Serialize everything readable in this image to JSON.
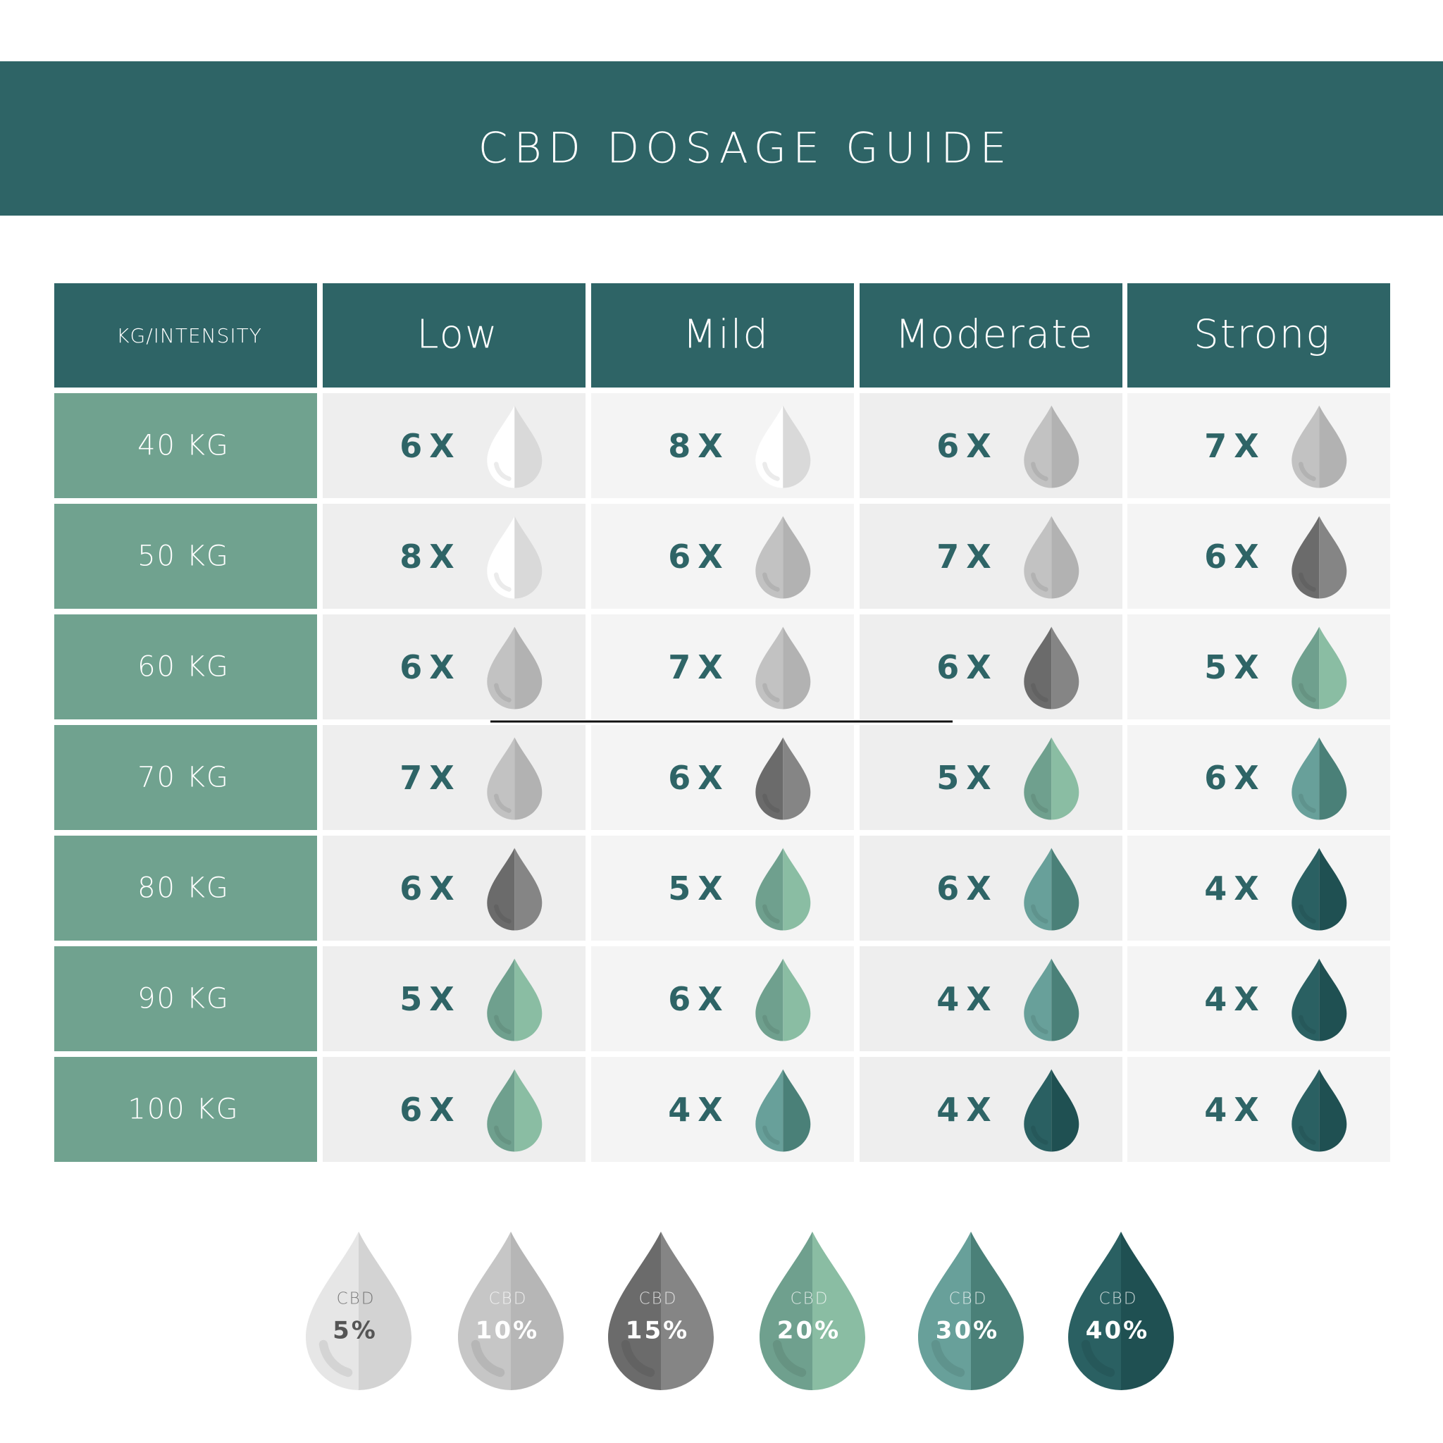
{
  "header": {
    "title": "CBD DOSAGE GUIDE"
  },
  "table": {
    "header": [
      "KG/INTENSITY",
      "Low",
      "Mild",
      "Moderate",
      "Strong"
    ],
    "rows": [
      {
        "label": "40 KG",
        "cells": [
          {
            "text": "6X",
            "colors": [
              "#ffffff",
              "#d9d9d9"
            ]
          },
          {
            "text": "8X",
            "colors": [
              "#ffffff",
              "#d9d9d9"
            ]
          },
          {
            "text": "6X",
            "colors": [
              "#c2c2c2",
              "#b2b2b2"
            ]
          },
          {
            "text": "7X",
            "colors": [
              "#c2c2c2",
              "#b2b2b2"
            ]
          }
        ]
      },
      {
        "label": "50 KG",
        "cells": [
          {
            "text": "8X",
            "colors": [
              "#ffffff",
              "#d9d9d9"
            ]
          },
          {
            "text": "6X",
            "colors": [
              "#c2c2c2",
              "#b2b2b2"
            ]
          },
          {
            "text": "7X",
            "colors": [
              "#c2c2c2",
              "#b2b2b2"
            ]
          },
          {
            "text": "6X",
            "colors": [
              "#6b6b6b",
              "#858585"
            ]
          }
        ]
      },
      {
        "label": "60 KG",
        "cells": [
          {
            "text": "6X",
            "colors": [
              "#c2c2c2",
              "#b2b2b2"
            ]
          },
          {
            "text": "7X",
            "colors": [
              "#c2c2c2",
              "#b2b2b2"
            ]
          },
          {
            "text": "6X",
            "colors": [
              "#6b6b6b",
              "#858585"
            ]
          },
          {
            "text": "5X",
            "colors": [
              "#6fa08e",
              "#8abda3"
            ]
          }
        ]
      },
      {
        "label": "70 KG",
        "cells": [
          {
            "text": "7X",
            "colors": [
              "#c2c2c2",
              "#b2b2b2"
            ]
          },
          {
            "text": "6X",
            "colors": [
              "#6b6b6b",
              "#858585"
            ]
          },
          {
            "text": "5X",
            "colors": [
              "#6fa08e",
              "#8abda3"
            ]
          },
          {
            "text": "6X",
            "colors": [
              "#68a09a",
              "#4a8078"
            ]
          }
        ]
      },
      {
        "label": "80 KG",
        "cells": [
          {
            "text": "6X",
            "colors": [
              "#6b6b6b",
              "#858585"
            ]
          },
          {
            "text": "5X",
            "colors": [
              "#6fa08e",
              "#8abda3"
            ]
          },
          {
            "text": "6X",
            "colors": [
              "#68a09a",
              "#4a8078"
            ]
          },
          {
            "text": "4X",
            "colors": [
              "#2a6062",
              "#1f5052"
            ]
          }
        ]
      },
      {
        "label": "90 KG",
        "cells": [
          {
            "text": "5X",
            "colors": [
              "#6fa08e",
              "#8abda3"
            ]
          },
          {
            "text": "6X",
            "colors": [
              "#6fa08e",
              "#8abda3"
            ]
          },
          {
            "text": "4X",
            "colors": [
              "#68a09a",
              "#4a8078"
            ]
          },
          {
            "text": "4X",
            "colors": [
              "#2a6062",
              "#1f5052"
            ]
          }
        ]
      },
      {
        "label": "100 KG",
        "cells": [
          {
            "text": "6X",
            "colors": [
              "#6fa08e",
              "#8abda3"
            ]
          },
          {
            "text": "4X",
            "colors": [
              "#68a09a",
              "#4a8078"
            ]
          },
          {
            "text": "4X",
            "colors": [
              "#2a6062",
              "#1f5052"
            ]
          },
          {
            "text": "4X",
            "colors": [
              "#2a6062",
              "#1f5052"
            ]
          }
        ]
      }
    ]
  },
  "legend": [
    {
      "label": "CBD",
      "value": "5%",
      "colors": [
        "#e6e6e6",
        "#d3d3d3"
      ],
      "text_color": "#555555"
    },
    {
      "label": "CBD",
      "value": "10%",
      "colors": [
        "#c6c6c6",
        "#b6b6b6"
      ],
      "text_color": "#ffffff"
    },
    {
      "label": "CBD",
      "value": "15%",
      "colors": [
        "#6b6b6b",
        "#858585"
      ],
      "text_color": "#ffffff"
    },
    {
      "label": "CBD",
      "value": "20%",
      "colors": [
        "#6fa08e",
        "#8abda3"
      ],
      "text_color": "#ffffff"
    },
    {
      "label": "CBD",
      "value": "30%",
      "colors": [
        "#68a09a",
        "#4a8078"
      ],
      "text_color": "#ffffff"
    },
    {
      "label": "CBD",
      "value": "40%",
      "colors": [
        "#2a6062",
        "#1f5052"
      ],
      "text_color": "#ffffff"
    }
  ]
}
